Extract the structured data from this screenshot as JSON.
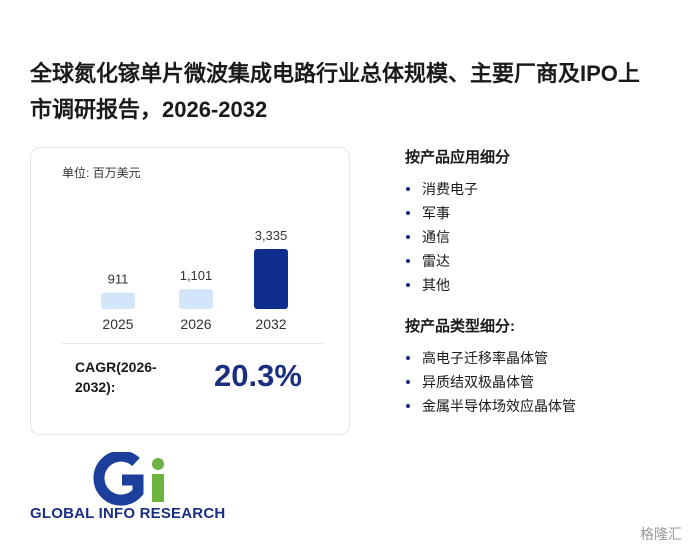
{
  "header": {
    "title": "全球氮化镓单片微波集成电路行业总体规模、主要厂商及IPO上市调研报告，2026-2032"
  },
  "chart_data": {
    "type": "bar",
    "unit": "单位: 百万美元",
    "categories": [
      "2025",
      "2026",
      "2032"
    ],
    "values": [
      911,
      1101,
      3335
    ],
    "value_labels": [
      "911",
      "1,101",
      "3,335"
    ],
    "colors": [
      "#d3e5f8",
      "#d3e5f8",
      "#0f2d8c"
    ]
  },
  "cagr": {
    "label": "CAGR(2026-2032):",
    "value": "20.3%"
  },
  "segments": [
    {
      "heading": "按产品应用细分",
      "items": [
        "消费电子",
        "军事",
        "通信",
        "雷达",
        "其他"
      ]
    },
    {
      "heading": "按产品类型细分:",
      "items": [
        "高电子迁移率晶体管",
        "异质结双极晶体管",
        "金属半导体场效应晶体管"
      ]
    }
  ],
  "logo": {
    "text": "GLOBAL INFO RESEARCH"
  },
  "watermark": "格隆汇"
}
